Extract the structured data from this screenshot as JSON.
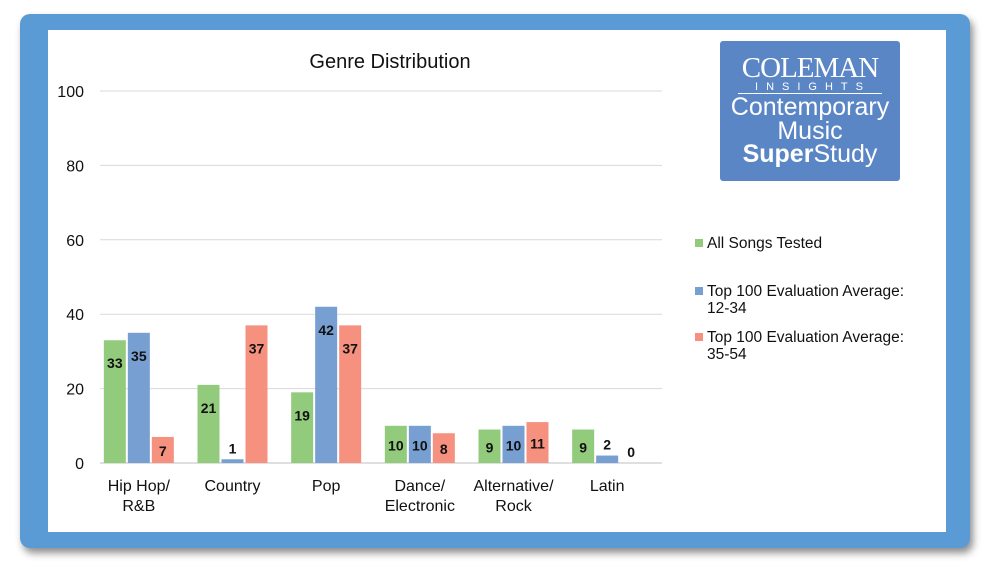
{
  "chart_data": {
    "type": "bar",
    "title": "Genre Distribution",
    "categories": [
      "Hip Hop/\nR&B",
      "Country",
      "Pop",
      "Dance/\nElectronic",
      "Alternative/\nRock",
      "Latin"
    ],
    "series": [
      {
        "name": "All Songs Tested",
        "color": "#93cb7c",
        "values": [
          33,
          21,
          19,
          10,
          9,
          9
        ]
      },
      {
        "name": "Top 100 Evaluation Average: 12-34",
        "color": "#779fd1",
        "values": [
          35,
          1,
          42,
          10,
          10,
          2
        ]
      },
      {
        "name": "Top 100 Evaluation Average: 35-54",
        "color": "#f7917f",
        "values": [
          7,
          37,
          37,
          8,
          11,
          0
        ]
      }
    ],
    "ylim": [
      0,
      100
    ],
    "yticks": [
      0,
      20,
      40,
      60,
      80,
      100
    ],
    "grid": true,
    "legend_position": "right",
    "data_labels": true
  },
  "legend": {
    "items": [
      {
        "line1": "All Songs Tested",
        "line2": "",
        "color": "#93cb7c"
      },
      {
        "line1": "Top 100 Evaluation Average:",
        "line2": "12-34",
        "color": "#779fd1"
      },
      {
        "line1": "Top 100 Evaluation Average:",
        "line2": "35-54",
        "color": "#f7917f"
      }
    ]
  },
  "logo": {
    "line1": "COLEMAN",
    "line2": "INSIGHTS",
    "line3": "Contemporary",
    "line4": "Music",
    "line5_bold": "Super",
    "line5_rest": "Study"
  },
  "frame_color": "#5b9bd5"
}
